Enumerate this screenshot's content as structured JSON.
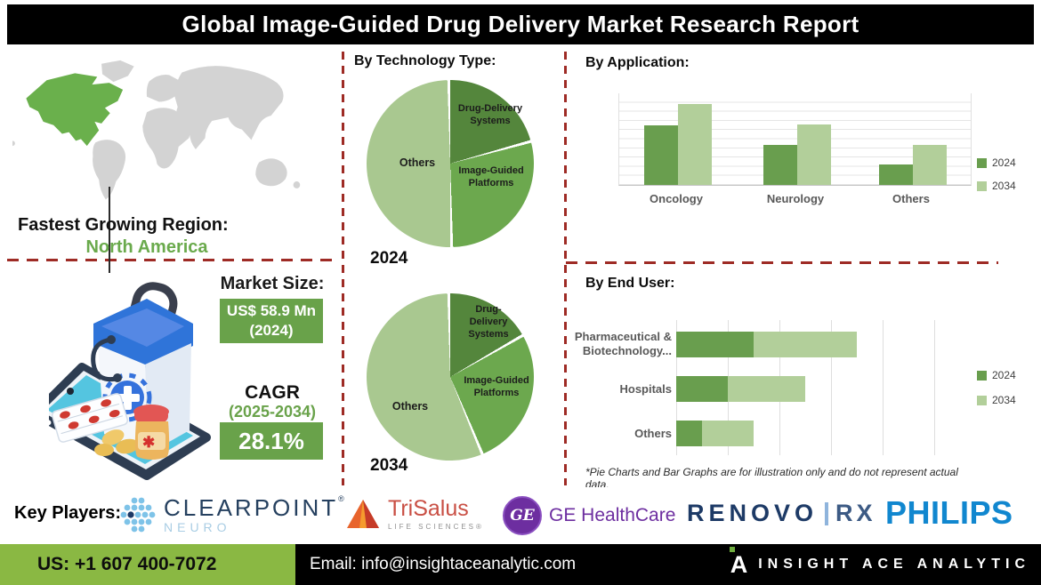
{
  "title": "Global Image-Guided Drug Delivery Market Research Report",
  "region": {
    "heading": "Fastest Growing Region:",
    "value": "North America"
  },
  "market_size": {
    "heading": "Market Size:",
    "value_line1": "US$ 58.9 Mn",
    "value_line2": "(2024)",
    "cagr_heading": "CAGR",
    "cagr_period": "(2025-2034)",
    "cagr_value": "28.1%"
  },
  "sections": {
    "technology": "By Technology Type:",
    "application": "By Application:",
    "end_user": "By End User:"
  },
  "note": "*Pie Charts and Bar Graphs are for illustration only and do not represent actual data.",
  "chart_data": [
    {
      "type": "pie",
      "title": "By Technology Type",
      "year": "2024",
      "labels": [
        "Drug-Delivery Systems",
        "Image-Guided Platforms",
        "Others"
      ],
      "values": [
        21,
        29,
        50
      ],
      "colors": [
        "#54863c",
        "#6ca84e",
        "#a9c890"
      ],
      "legend_position": "none"
    },
    {
      "type": "pie",
      "title": "By Technology Type",
      "year": "2034",
      "labels": [
        "Drug-Delivery Systems",
        "Image-Guided Platforms",
        "Others"
      ],
      "values": [
        17,
        27,
        56
      ],
      "colors": [
        "#54863c",
        "#6ca84e",
        "#a9c890"
      ],
      "legend_position": "none"
    },
    {
      "type": "bar",
      "title": "By Application",
      "categories": [
        "Oncology",
        "Neurology",
        "Others"
      ],
      "series": [
        {
          "name": "2024",
          "values": [
            65,
            44,
            22
          ],
          "color": "#699e4e"
        },
        {
          "name": "2034",
          "values": [
            88,
            66,
            44
          ],
          "color": "#b2cf9a"
        }
      ],
      "ylim": [
        0,
        100
      ],
      "grid": true,
      "legend_position": "right"
    },
    {
      "type": "bar-horizontal-stacked",
      "title": "By End User",
      "categories": [
        "Pharmaceutical & Biotechnology...",
        "Hospitals",
        "Others"
      ],
      "series": [
        {
          "name": "2024",
          "values": [
            30,
            20,
            10
          ],
          "color": "#699e4e"
        },
        {
          "name": "2034",
          "values": [
            40,
            30,
            20
          ],
          "color": "#b2cf9a"
        }
      ],
      "xlim": [
        0,
        100
      ],
      "grid": true,
      "legend_position": "right"
    }
  ],
  "key_players": {
    "heading": "Key Players:",
    "clearpoint": {
      "line1": "CLEARPOINT",
      "reg": "®",
      "line2": "NEURO"
    },
    "trisalus": {
      "line1": "TriSalus",
      "line2": "LIFE SCIENCES®"
    },
    "ge": {
      "monogram": "GE",
      "label": "GE HealthCare"
    },
    "renovorx": {
      "part1": "RENOVO",
      "part2": "RX"
    },
    "philips": {
      "label": "PHILIPS"
    }
  },
  "footer": {
    "phone": "US: +1 607 400-7072",
    "email": "Email: info@insightaceanalytic.com",
    "brand_glyph": "A",
    "brand": "INSIGHT ACE ANALYTIC"
  },
  "colors": {
    "dashed_line": "#9e2b25",
    "green_box": "#69a24a",
    "map_highlight": "#6ab04c",
    "map_base": "#d3d3d3",
    "na_text": "#6aaa4c",
    "footer_green": "#8ab843"
  }
}
